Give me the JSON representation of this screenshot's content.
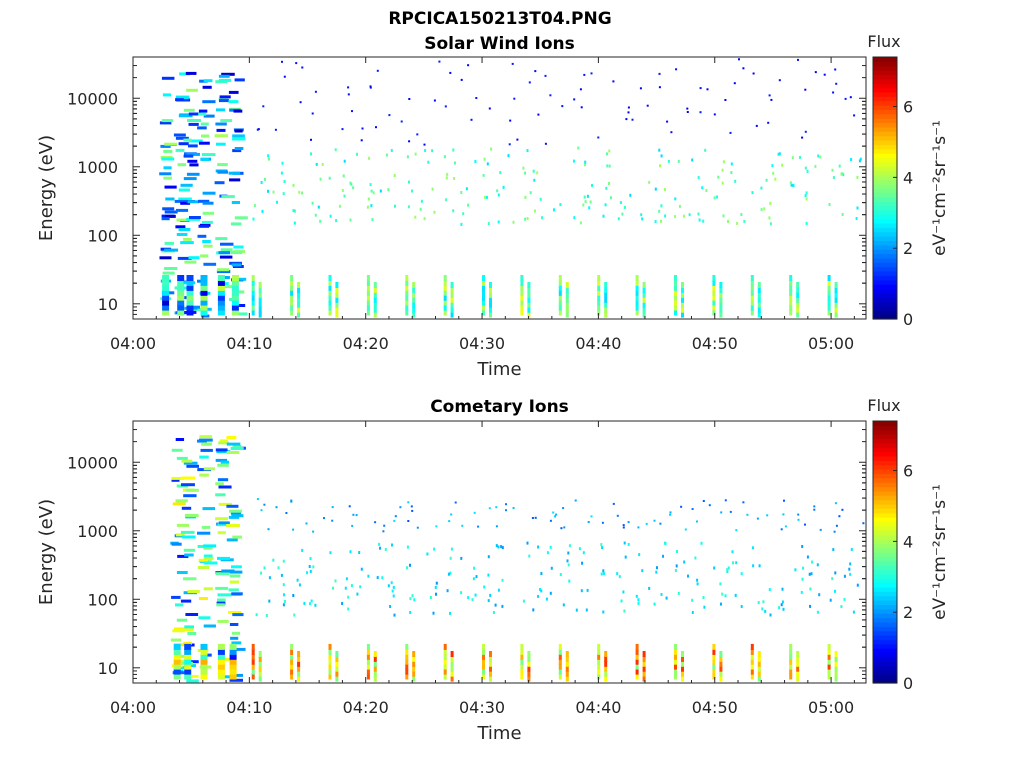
{
  "title": "RPCICA150213T04.PNG",
  "chart_data": [
    {
      "type": "heatmap",
      "title": "Solar Wind Ions",
      "xlabel": "Time",
      "ylabel": "Energy (eV)",
      "x_ticks": [
        "04:00",
        "04:10",
        "04:20",
        "04:30",
        "04:40",
        "04:50",
        "05:00"
      ],
      "x_tick_minutes": [
        0,
        10,
        20,
        30,
        40,
        50,
        60
      ],
      "xlim_minutes": [
        0,
        63
      ],
      "y_scale": "log",
      "ylim": [
        6,
        40000
      ],
      "y_ticks": [
        "10",
        "100",
        "1000",
        "10000"
      ],
      "y_tick_values": [
        10,
        100,
        1000,
        10000
      ],
      "colorbar": {
        "title": "Flux",
        "label": "eV⁻¹cm⁻²sr⁻¹s⁻¹",
        "ticks": [
          "0",
          "2",
          "4",
          "6"
        ],
        "tick_values": [
          0,
          2,
          4,
          6
        ],
        "range": [
          0,
          7.4
        ],
        "colormap": "jet"
      },
      "features": {
        "sweep_start_minute": 10.2,
        "sweep_period_minutes": 3.3,
        "low_energy_band_eV": [
          7,
          30
        ],
        "low_energy_flux": [
          2.5,
          4.5
        ],
        "mid_energy_band_eV": [
          150,
          2000
        ],
        "mid_energy_flux": [
          2.5,
          4.0
        ],
        "high_energy_band_eV": [
          2000,
          40000
        ],
        "high_energy_flux": [
          0.8,
          1.2
        ],
        "early_columns_minutes": [
          2.5,
          3.8,
          4.6,
          5.8,
          7.3,
          8.5
        ],
        "early_flux": [
          0.5,
          4.0
        ]
      }
    },
    {
      "type": "heatmap",
      "title": "Cometary Ions",
      "xlabel": "Time",
      "ylabel": "Energy (eV)",
      "x_ticks": [
        "04:00",
        "04:10",
        "04:20",
        "04:30",
        "04:40",
        "04:50",
        "05:00"
      ],
      "x_tick_minutes": [
        0,
        10,
        20,
        30,
        40,
        50,
        60
      ],
      "xlim_minutes": [
        0,
        63
      ],
      "y_scale": "log",
      "ylim": [
        6,
        40000
      ],
      "y_ticks": [
        "10",
        "100",
        "1000",
        "10000"
      ],
      "y_tick_values": [
        10,
        100,
        1000,
        10000
      ],
      "colorbar": {
        "title": "Flux",
        "label": "eV⁻¹cm⁻²sr⁻¹s⁻¹",
        "ticks": [
          "0",
          "2",
          "4",
          "6"
        ],
        "tick_values": [
          0,
          2,
          4,
          6
        ],
        "range": [
          0,
          7.4
        ],
        "colormap": "jet"
      },
      "features": {
        "sweep_start_minute": 10.2,
        "sweep_period_minutes": 3.3,
        "low_energy_band_eV": [
          7,
          25
        ],
        "low_energy_flux": [
          3.5,
          6.2
        ],
        "mid_energy_band_eV": [
          60,
          700
        ],
        "mid_energy_flux": [
          2.0,
          3.2
        ],
        "high_energy_band_eV": [
          1000,
          3000
        ],
        "high_energy_flux": [
          1.5,
          2.6
        ],
        "early_columns_minutes": [
          3.5,
          4.4,
          5.8,
          7.3,
          8.3
        ],
        "early_flux": [
          1.0,
          4.8
        ]
      }
    }
  ]
}
